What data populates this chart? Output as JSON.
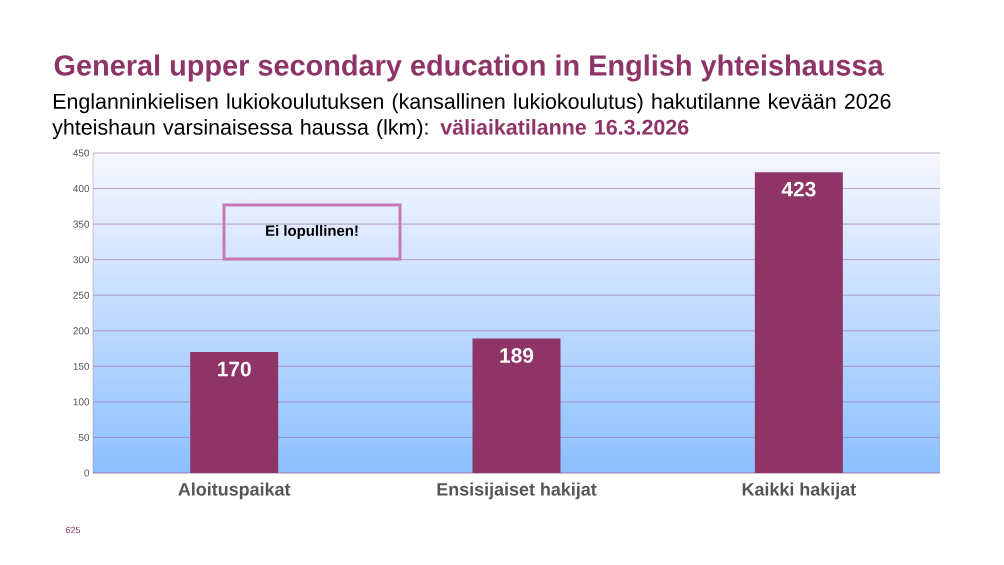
{
  "chart_data": {
    "type": "bar",
    "title": "General upper secondary education in English yhteishaussa",
    "subtitle": "Englanninkielisen lukiokoulutuksen (kansallinen lukiokoulutus) hakutilanne kevään 2026 yhteishaun varsinaisessa haussa (lkm):",
    "categories": [
      "Aloituspaikat",
      "Ensisijaiset hakijat",
      "Kaikki hakijat"
    ],
    "values": [
      170,
      189,
      423
    ],
    "color": "#8e3467",
    "ylim": [
      0,
      450
    ],
    "yticks": [
      0,
      50,
      100,
      150,
      200,
      250,
      300,
      350,
      400,
      450
    ],
    "grid": "y",
    "data_labels": true,
    "annotations": [
      "Ei lopullinen!",
      "väliaikatilanne 16.3.2026",
      "625"
    ]
  }
}
